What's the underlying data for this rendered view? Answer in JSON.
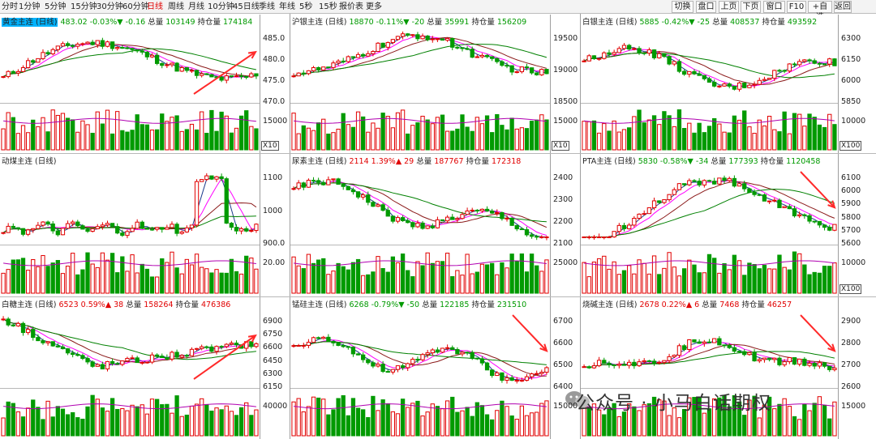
{
  "toolbar": {
    "periods": [
      "分时",
      "1分钟",
      "5分钟",
      "15分钟",
      "30分钟",
      "60分钟",
      "日线",
      "周线",
      "月线",
      "10分钟",
      "45日线",
      "季线",
      "年线",
      "5秒",
      "15秒",
      "报价表",
      "更多"
    ],
    "active_period": "日线",
    "right_buttons": [
      "切换",
      "盘口",
      "上页",
      "下页",
      "窗口",
      "F10",
      "+自选",
      "返回"
    ]
  },
  "panels": [
    {
      "name": "黄金主连 (日线)",
      "price": "483.02",
      "chg_pct": "-0.03%",
      "chg_arrow": "▼",
      "chg": "-0.16",
      "vol_label": "总量",
      "vol": "103149",
      "oi_label": "持仓量",
      "oi": "174184",
      "highlight": true,
      "price_axis": [
        "485.0",
        "480.0",
        "475.0",
        "470.0"
      ],
      "vol_axis": [
        "15000"
      ],
      "vol_unit": "X10",
      "dir": "up-right"
    },
    {
      "name": "沪银主连 (日线)",
      "price": "18870",
      "chg_pct": "-0.11%",
      "chg_arrow": "▼",
      "chg": "-20",
      "vol_label": "总量",
      "vol": "35991",
      "oi_label": "持仓量",
      "oi": "156209",
      "price_axis": [
        "19500",
        "19000",
        "18500"
      ],
      "vol_axis": [
        "15000"
      ],
      "vol_unit": "X10"
    },
    {
      "name": "白银主连 (日线)",
      "price": "5885",
      "chg_pct": "-0.42%",
      "chg_arrow": "▼",
      "chg": "-25",
      "vol_label": "总量",
      "vol": "408537",
      "oi_label": "持仓量",
      "oi": "493592",
      "price_axis": [
        "6300",
        "6150",
        "6000",
        "5850"
      ],
      "vol_axis": [
        "10000"
      ],
      "vol_unit": "X100"
    },
    {
      "name": "动煤主连 (日线)",
      "price": "",
      "chg_pct": "",
      "chg_arrow": "",
      "chg": "",
      "vol_label": "",
      "vol": "",
      "oi_label": "",
      "oi": "",
      "price_axis": [
        "1100",
        "1000",
        "900.0"
      ],
      "vol_axis": [
        "20.00"
      ],
      "vol_unit": ""
    },
    {
      "name": "尿素主连 (日线)",
      "price": "2114",
      "chg_pct": "1.39%",
      "chg_arrow": "▲",
      "chg": "29",
      "vol_label": "总量",
      "vol": "187767",
      "oi_label": "持仓量",
      "oi": "172318",
      "price_axis": [
        "2400",
        "2300",
        "2200",
        "2100"
      ],
      "vol_axis": [
        "25000"
      ],
      "vol_unit": ""
    },
    {
      "name": "PTA主连 (日线)",
      "price": "5830",
      "chg_pct": "-0.58%",
      "chg_arrow": "▼",
      "chg": "-34",
      "vol_label": "总量",
      "vol": "177393",
      "oi_label": "持仓量",
      "oi": "1120458",
      "price_axis": [
        "6100",
        "6000",
        "5900",
        "5800",
        "5700",
        "5600"
      ],
      "vol_axis": [
        "10000"
      ],
      "vol_unit": "X100",
      "dir": "down-right"
    },
    {
      "name": "白糖主连 (日线)",
      "price": "6523",
      "chg_pct": "0.59%",
      "chg_arrow": "▲",
      "chg": "38",
      "vol_label": "总量",
      "vol": "158264",
      "oi_label": "持仓量",
      "oi": "476386",
      "price_axis": [
        "6900",
        "6750",
        "6600",
        "6450",
        "6300",
        "6150"
      ],
      "vol_axis": [
        "40000"
      ],
      "vol_unit": "",
      "dir": "up-right"
    },
    {
      "name": "锰硅主连 (日线)",
      "price": "6268",
      "chg_pct": "-0.79%",
      "chg_arrow": "▼",
      "chg": "-50",
      "vol_label": "总量",
      "vol": "122185",
      "oi_label": "持仓量",
      "oi": "231510",
      "price_axis": [
        "6700",
        "6600",
        "6500",
        "6400"
      ],
      "vol_axis": [
        "15000"
      ],
      "vol_unit": "",
      "dir": "down-right"
    },
    {
      "name": "烧碱主连 (日线)",
      "price": "2678",
      "chg_pct": "0.22%",
      "chg_arrow": "▲",
      "chg": "6",
      "vol_label": "总量",
      "vol": "7468",
      "oi_label": "持仓量",
      "oi": "46257",
      "price_axis": [
        "2900",
        "2800",
        "2700",
        "2600"
      ],
      "vol_axis": [
        "15000"
      ],
      "vol_unit": "",
      "dir": "down-right"
    }
  ],
  "watermark": "公众号 · 小马白话期权",
  "colors": {
    "up": "#e10000",
    "down": "#009a00",
    "ma5": "#1e3c8c",
    "ma10": "#ff00ff",
    "ma20": "#8b1a1a",
    "ma60": "#008000",
    "arrow": "#ff2a2a"
  }
}
